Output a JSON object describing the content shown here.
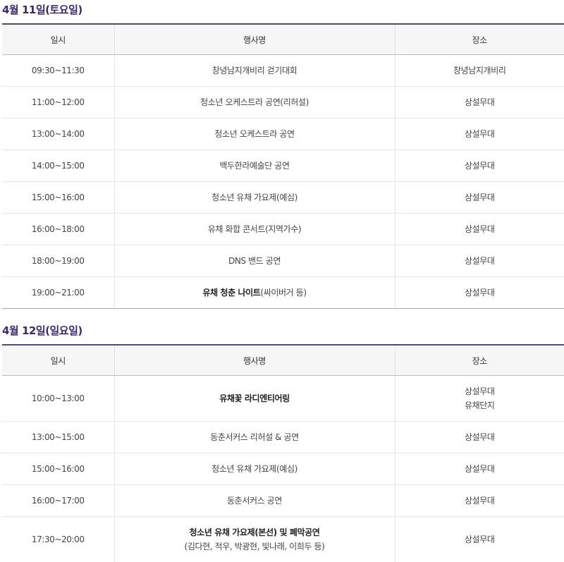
{
  "sections": [
    {
      "title": "4월 11일(토요일)",
      "headers": [
        "일시",
        "행사명",
        "장소"
      ],
      "rows": [
        {
          "time": "09:30~11:30",
          "event": "창녕남지개비리 걷기대회",
          "place": "창녕남지개비리"
        },
        {
          "time": "11:00~12:00",
          "event": "청소년 오케스트라 공연(리허설)",
          "place": "상설무대"
        },
        {
          "time": "13:00~14:00",
          "event": "청소년 오케스트라 공연",
          "place": "상설무대"
        },
        {
          "time": "14:00~15:00",
          "event": "백두한라예술단 공연",
          "place": "상설무대"
        },
        {
          "time": "15:00~16:00",
          "event": "청소년 유채 가요제(예심)",
          "place": "상설무대"
        },
        {
          "time": "16:00~18:00",
          "event": "유채 화합 콘서트(지역가수)",
          "place": "상설무대"
        },
        {
          "time": "18:00~19:00",
          "event": "DNS 밴드 공연",
          "place": "상설무대"
        },
        {
          "time": "19:00~21:00",
          "event_bold": "유채 청춘 나이트",
          "event": "(싸이버거 등)",
          "place": "상설무대"
        }
      ]
    },
    {
      "title": "4월 12일(일요일)",
      "headers": [
        "일시",
        "행사명",
        "장소"
      ],
      "rows": [
        {
          "time": "10:00~13:00",
          "event_bold": "유채꽃 라디엔티어링",
          "place": "상설무대",
          "place2": "유채단지"
        },
        {
          "time": "13:00~15:00",
          "event": "동춘서커스 리허설 & 공연",
          "place": "상설무대"
        },
        {
          "time": "15:00~16:00",
          "event": "청소년 유채 가요제(예심)",
          "place": "상설무대"
        },
        {
          "time": "16:00~17:00",
          "event": "동춘서커스 공연",
          "place": "상설무대"
        },
        {
          "time": "17:30~20:00",
          "event_bold": "청소년 유채 가요제(본선) 및 폐막공연",
          "event2": "(김다현, 적우, 박광현, 빛나래, 이희두 등)",
          "place": "상설무대"
        }
      ]
    }
  ]
}
